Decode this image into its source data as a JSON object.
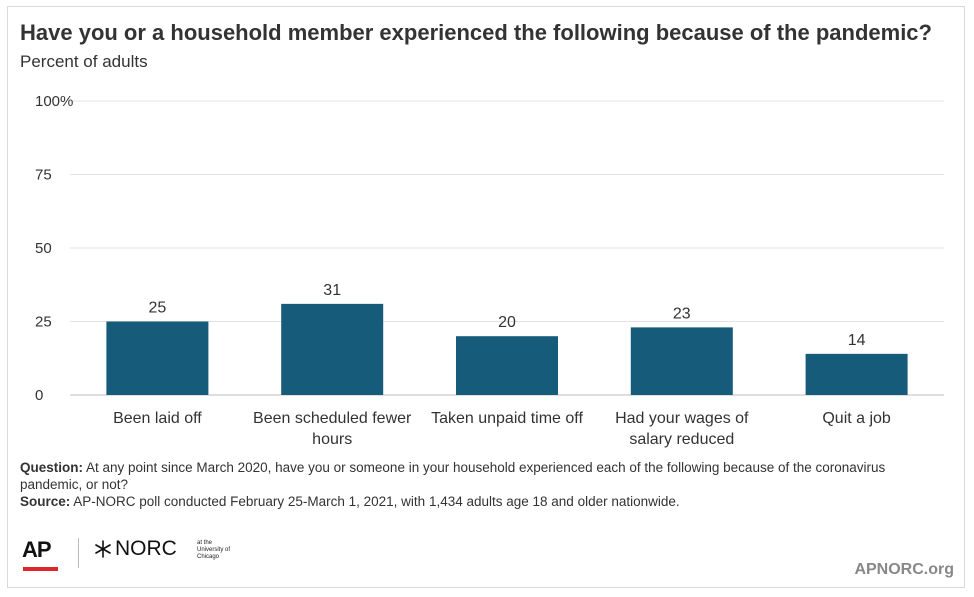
{
  "header": {
    "title": "Have you or a household member experienced the following because of the pandemic?",
    "subtitle": "Percent of adults"
  },
  "colors": {
    "bar": "#165b79",
    "grid": "#e3e3e3",
    "text": "#333333",
    "accent_red": "#e0262d",
    "site": "#888888"
  },
  "chart_data": {
    "type": "bar",
    "title": "Have you or a household member experienced the following because of the pandemic?",
    "subtitle": "Percent of adults",
    "categories": [
      "Been laid off",
      "Been scheduled fewer hours",
      "Taken unpaid time off",
      "Had your wages of salary reduced",
      "Quit a job"
    ],
    "category_lines": [
      [
        "Been laid off"
      ],
      [
        "Been scheduled fewer",
        "hours"
      ],
      [
        "Taken unpaid time off"
      ],
      [
        "Had your wages of",
        "salary reduced"
      ],
      [
        "Quit a job"
      ]
    ],
    "values": [
      25,
      31,
      20,
      23,
      14
    ],
    "value_labels": [
      "25",
      "31",
      "20",
      "23",
      "14"
    ],
    "y_ticks": [
      0,
      25,
      50,
      75,
      100
    ],
    "y_tick_labels": [
      "0",
      "25",
      "50",
      "75",
      "100%"
    ],
    "ylim": [
      0,
      100
    ],
    "grid": true,
    "legend": "none"
  },
  "footnotes": {
    "question_label": "Question:",
    "question_text": "At any point since March 2020, have you or someone in your household experienced each of the following because of the coronavirus pandemic, or not?",
    "source_label": "Source:",
    "source_text": "AP-NORC poll conducted February 25-March 1, 2021, with 1,434 adults age 18 and older nationwide."
  },
  "branding": {
    "ap_logo": "AP",
    "norc_logo": "NORC",
    "norc_small": "at the University of Chicago",
    "site": "APNORC.org"
  }
}
